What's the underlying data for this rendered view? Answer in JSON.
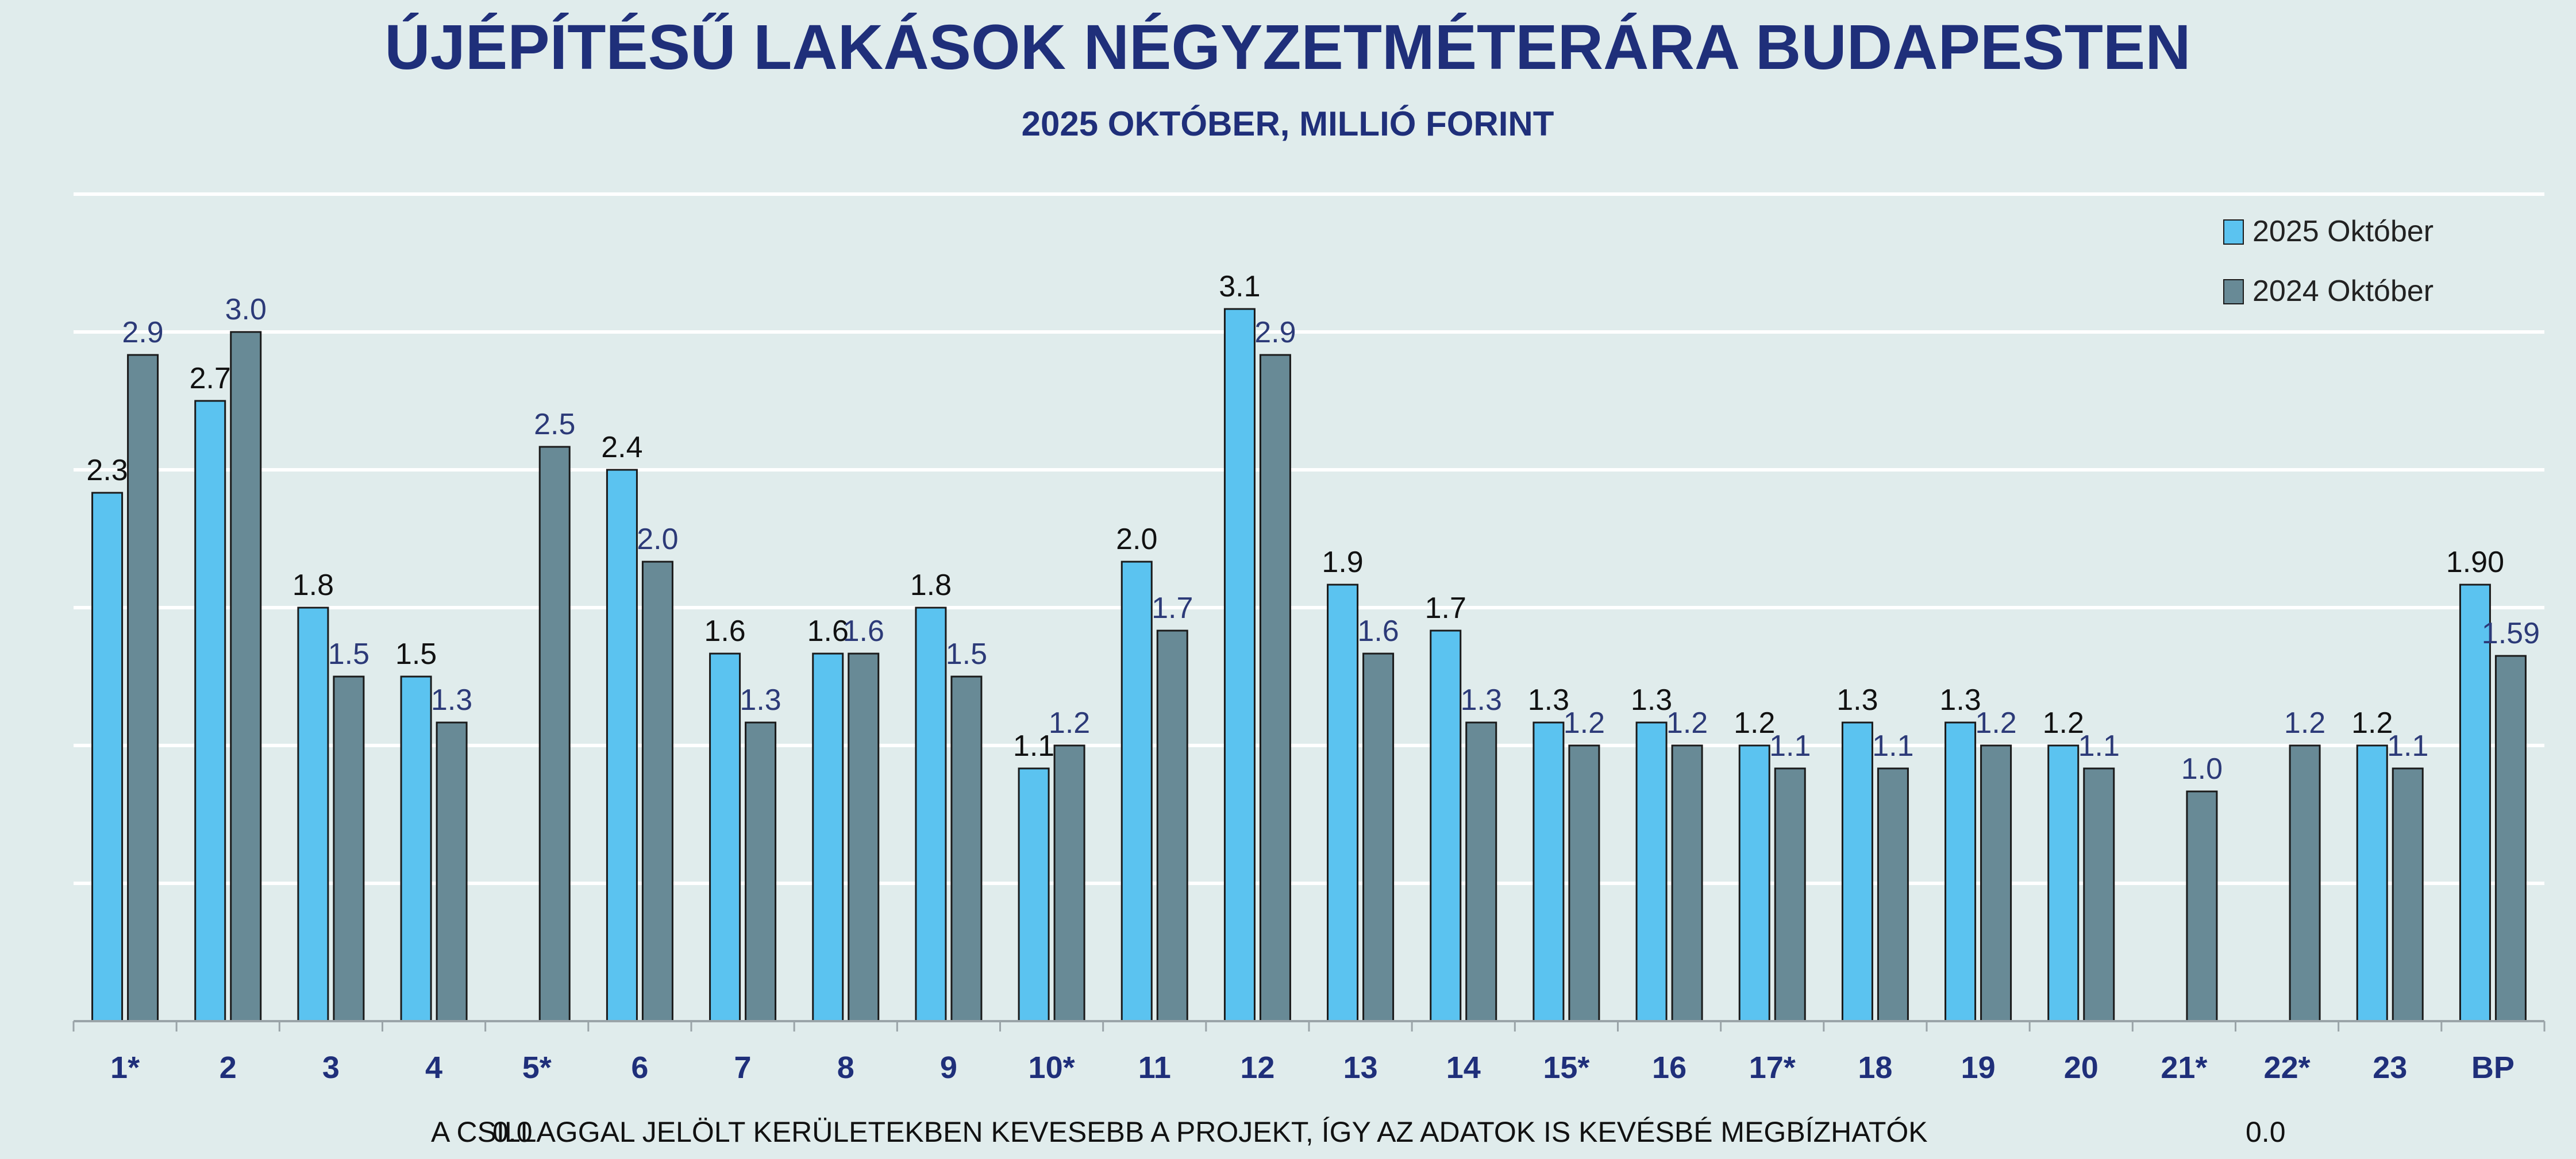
{
  "chart_data": {
    "type": "bar",
    "title": "ÚJÉPÍTÉSŰ LAKÁSOK NÉGYZETMÉTERÁRA BUDAPESTEN",
    "subtitle": "2025 OKTÓBER, MILLIÓ FORINT",
    "categories": [
      "1*",
      "2",
      "3",
      "4",
      "5*",
      "6",
      "7",
      "8",
      "9",
      "10*",
      "11",
      "12",
      "13",
      "14",
      "15*",
      "16",
      "17*",
      "18",
      "19",
      "20",
      "21*",
      "22*",
      "23",
      "BP"
    ],
    "series": [
      {
        "name": "2025 Október",
        "color": "#5bc3f0",
        "values": [
          2.3,
          2.7,
          1.8,
          1.5,
          0.0,
          2.4,
          1.6,
          1.6,
          1.8,
          1.1,
          2.0,
          3.1,
          1.9,
          1.7,
          1.3,
          1.3,
          1.2,
          1.3,
          1.3,
          1.2,
          0.0,
          0.0,
          1.2,
          1.9
        ],
        "labels": [
          "2.3",
          "2.7",
          "1.8",
          "1.5",
          "",
          "2.4",
          "1.6",
          "1.6",
          "1.8",
          "1.1",
          "2.0",
          "3.1",
          "1.9",
          "1.7",
          "1.3",
          "1.3",
          "1.2",
          "1.3",
          "1.3",
          "1.2",
          "",
          "",
          "1.2",
          "1.90"
        ]
      },
      {
        "name": "2024 Október",
        "color": "#688a96",
        "values": [
          2.9,
          3.0,
          1.5,
          1.3,
          2.5,
          2.0,
          1.3,
          1.6,
          1.5,
          1.2,
          1.7,
          2.9,
          1.6,
          1.3,
          1.2,
          1.2,
          1.1,
          1.1,
          1.2,
          1.1,
          1.0,
          1.2,
          1.1,
          1.59
        ],
        "labels": [
          "2.9",
          "3.0",
          "1.5",
          "1.3",
          "2.5",
          "2.0",
          "1.3",
          "1.6",
          "1.5",
          "1.2",
          "1.7",
          "2.9",
          "1.6",
          "1.3",
          "1.2",
          "1.2",
          "1.1",
          "1.1",
          "1.2",
          "1.1",
          "1.0",
          "1.2",
          "1.1",
          "1.59"
        ]
      }
    ],
    "ylim": [
      0,
      3.6
    ],
    "grid": true,
    "legend": "top-right",
    "footnote": "A CSILLAGGAL JELÖLT KERÜLETEKBEN KEVESEBB A PROJEKT, ÍGY AZ ADATOK IS KEVÉSBÉ MEGBÍZHATÓK",
    "stray_labels": [
      "0.0",
      "0.0"
    ]
  }
}
